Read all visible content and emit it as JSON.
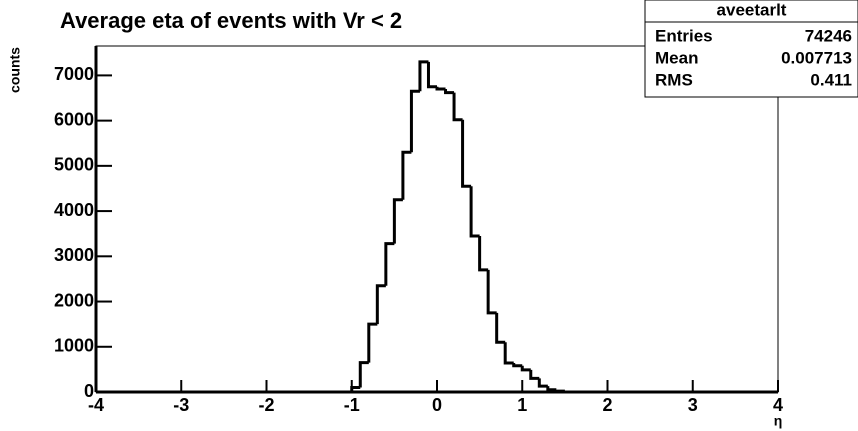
{
  "chart_data": {
    "type": "histogram",
    "title": "Average eta of events with Vr < 2",
    "x_label": "η",
    "y_label": "counts",
    "bins": [
      -1.0,
      -0.9,
      -0.8,
      -0.7,
      -0.6,
      -0.5,
      -0.4,
      -0.3,
      -0.2,
      -0.1,
      0.0,
      0.1,
      0.2,
      0.3,
      0.4,
      0.5,
      0.6,
      0.7,
      0.8,
      0.9,
      1.0,
      1.1,
      1.2,
      1.3,
      1.4,
      1.5
    ],
    "counts": [
      100,
      650,
      1500,
      2350,
      3280,
      4250,
      5300,
      6650,
      7300,
      6750,
      6700,
      6620,
      6020,
      4550,
      3450,
      2700,
      1750,
      1100,
      640,
      580,
      490,
      300,
      130,
      50,
      20
    ],
    "color": "#000000",
    "xlim": [
      -4,
      4
    ],
    "xticks": [
      -4,
      -3,
      -2,
      -1,
      0,
      1,
      2,
      3,
      4
    ],
    "ylim": [
      0,
      7650
    ],
    "yticks": [
      0,
      1000,
      2000,
      3000,
      4000,
      5000,
      6000,
      7000
    ],
    "stats": {
      "title": "aveetarlt",
      "entries": [
        {
          "label": "Entries",
          "value": 74246
        },
        {
          "label": "Mean",
          "value": 0.007713
        },
        {
          "label": "RMS",
          "value": 0.411
        }
      ]
    }
  }
}
